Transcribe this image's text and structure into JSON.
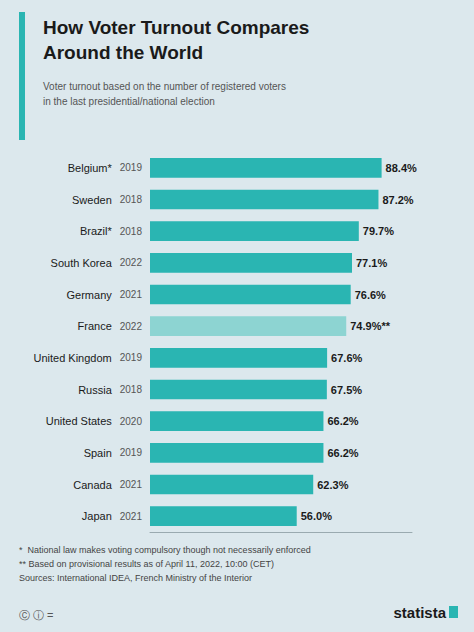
{
  "chart_data": {
    "type": "bar",
    "orientation": "horizontal",
    "title": "How Voter Turnout Compares\nAround the World",
    "subtitle": "Voter turnout based on the number of registered voters\nin the last presidential/national election",
    "categories": [
      "Belgium*",
      "Sweden",
      "Brazil*",
      "South Korea",
      "Germany",
      "France",
      "United Kingdom",
      "Russia",
      "United States",
      "Spain",
      "Canada",
      "Japan"
    ],
    "years": [
      2019,
      2018,
      2018,
      2022,
      2021,
      2022,
      2019,
      2018,
      2020,
      2019,
      2021,
      2021
    ],
    "values": [
      88.4,
      87.2,
      79.7,
      77.1,
      76.6,
      74.9,
      67.6,
      67.5,
      66.2,
      66.2,
      62.3,
      56.0
    ],
    "value_labels": [
      "88.4%",
      "87.2%",
      "79.7%",
      "77.1%",
      "76.6%",
      "74.9%**",
      "67.6%",
      "67.5%",
      "66.2%",
      "66.2%",
      "62.3%",
      "56.0%"
    ],
    "colors": [
      "#2ab5b2",
      "#2ab5b2",
      "#2ab5b2",
      "#2ab5b2",
      "#2ab5b2",
      "#8dd4d2",
      "#2ab5b2",
      "#2ab5b2",
      "#2ab5b2",
      "#2ab5b2",
      "#2ab5b2",
      "#2ab5b2"
    ],
    "xlim": [
      0,
      100
    ],
    "data_labels": true,
    "tick_labels": "y",
    "grid": false,
    "annotations": [
      "*  National law makes voting compulsory though not necessarily enforced",
      "** Based on provisional results as of April 11, 2022, 10:00 (CET)",
      "Sources: International IDEA, French Ministry of the Interior",
      "Ⓒ ⓘ =",
      "statista"
    ]
  }
}
